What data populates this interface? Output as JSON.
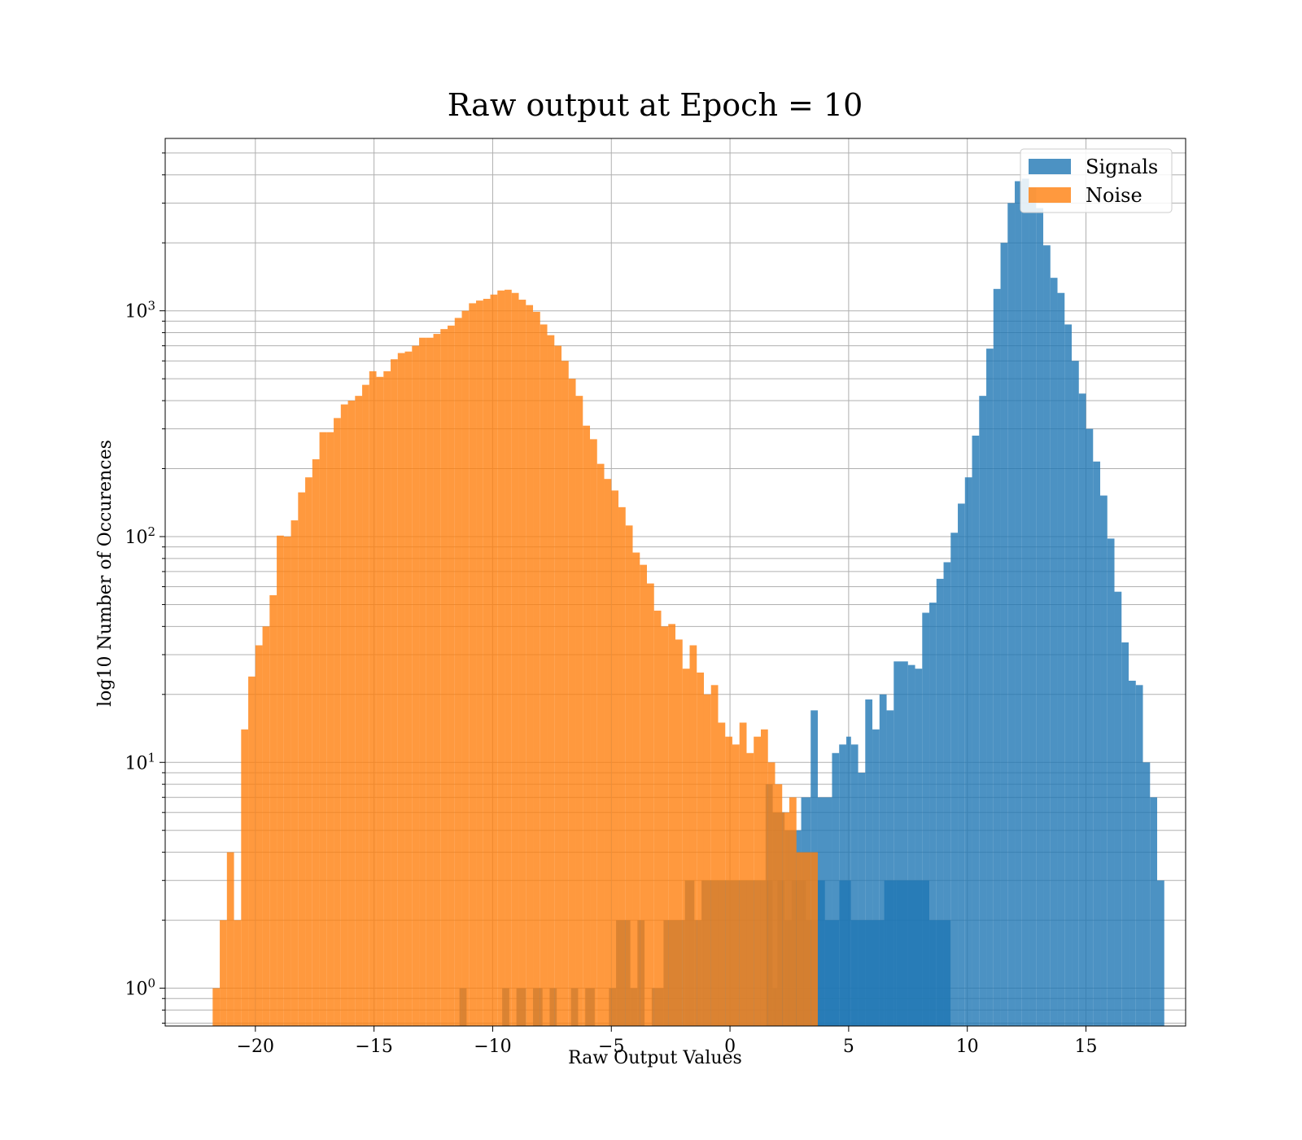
{
  "chart_data": {
    "type": "histogram",
    "title": "Raw output at Epoch = 10",
    "xlabel": "Raw Output Values",
    "ylabel": "log10 Number of Occurences",
    "xlim": [
      -23.8,
      19.2
    ],
    "ylim": [
      0.68,
      5800
    ],
    "yscale": "log",
    "grid": true,
    "legend_position": "top-right",
    "xticks": [
      -20,
      -15,
      -10,
      -5,
      0,
      5,
      10,
      15
    ],
    "xtick_labels": [
      "−20",
      "−15",
      "−10",
      "−5",
      "0",
      "5",
      "10",
      "15"
    ],
    "yticks": [
      {
        "value": 1,
        "label_base": "10",
        "label_exp": "0"
      },
      {
        "value": 10,
        "label_base": "10",
        "label_exp": "1"
      },
      {
        "value": 100,
        "label_base": "10",
        "label_exp": "2"
      },
      {
        "value": 1000,
        "label_base": "10",
        "label_exp": "3"
      }
    ],
    "series": [
      {
        "name": "Signals",
        "color": "#1f77b4",
        "opacity": 0.8,
        "bins": [
          [
            -11.4,
            -11.1,
            1
          ],
          [
            -9.6,
            -9.3,
            1
          ],
          [
            -9.0,
            -8.6,
            1
          ],
          [
            -8.3,
            -7.9,
            1
          ],
          [
            -7.6,
            -7.3,
            1
          ],
          [
            -6.7,
            -6.4,
            1
          ],
          [
            -6.1,
            -5.7,
            1
          ],
          [
            -5.1,
            -4.8,
            1
          ],
          [
            -4.8,
            -4.2,
            2
          ],
          [
            -4.2,
            -3.9,
            1
          ],
          [
            -3.9,
            -3.6,
            2
          ],
          [
            -3.3,
            -2.8,
            1
          ],
          [
            -2.8,
            -2.0,
            2
          ],
          [
            -2.0,
            -1.9,
            2
          ],
          [
            -1.9,
            -1.5,
            3
          ],
          [
            -1.5,
            -1.2,
            2
          ],
          [
            -1.2,
            1.5,
            3
          ],
          [
            1.5,
            1.8,
            3
          ],
          [
            1.8,
            2.0,
            1
          ],
          [
            2.0,
            2.3,
            3
          ],
          [
            2.3,
            2.6,
            2
          ],
          [
            2.6,
            3.2,
            3
          ],
          [
            3.2,
            3.4,
            2
          ],
          [
            3.4,
            3.7,
            2
          ],
          [
            3.7,
            4.0,
            3
          ],
          [
            4.0,
            4.6,
            2
          ],
          [
            4.6,
            5.1,
            3
          ],
          [
            5.1,
            5.4,
            2
          ],
          [
            5.4,
            6.5,
            2
          ],
          [
            6.5,
            7.0,
            3
          ],
          [
            7.0,
            8.4,
            3
          ],
          [
            8.4,
            8.7,
            2
          ],
          [
            8.7,
            9.1,
            2
          ],
          [
            9.1,
            9.3,
            2
          ],
          [
            3.4,
            3.7,
            17
          ],
          [
            1.5,
            1.8,
            8
          ],
          [
            1.8,
            2.3,
            6
          ],
          [
            2.3,
            3.0,
            5
          ],
          [
            3.0,
            3.4,
            7
          ],
          [
            3.7,
            4.3,
            7
          ],
          [
            4.3,
            4.6,
            11
          ],
          [
            4.6,
            4.9,
            12
          ],
          [
            4.9,
            5.1,
            13
          ],
          [
            5.1,
            5.4,
            12
          ],
          [
            5.4,
            5.7,
            9
          ],
          [
            5.7,
            6.0,
            19
          ],
          [
            6.0,
            6.3,
            14
          ],
          [
            6.3,
            6.6,
            20
          ],
          [
            6.6,
            6.9,
            17
          ],
          [
            6.9,
            7.5,
            28
          ],
          [
            7.5,
            7.8,
            27
          ],
          [
            7.8,
            8.1,
            26
          ],
          [
            8.1,
            8.4,
            46
          ],
          [
            8.4,
            8.7,
            51
          ],
          [
            8.7,
            9.0,
            65
          ],
          [
            9.0,
            9.3,
            77
          ],
          [
            9.3,
            9.6,
            104
          ],
          [
            9.6,
            9.9,
            140
          ],
          [
            9.9,
            10.2,
            183
          ],
          [
            10.2,
            10.5,
            280
          ],
          [
            10.5,
            10.8,
            420
          ],
          [
            10.8,
            11.1,
            680
          ],
          [
            11.1,
            11.4,
            1250
          ],
          [
            11.4,
            11.7,
            2000
          ],
          [
            11.7,
            12.0,
            3000
          ],
          [
            12.0,
            12.3,
            3750
          ],
          [
            12.3,
            12.6,
            3850
          ],
          [
            12.6,
            12.9,
            3500
          ],
          [
            12.9,
            13.2,
            2850
          ],
          [
            13.2,
            13.5,
            1950
          ],
          [
            13.5,
            13.8,
            1400
          ],
          [
            13.8,
            14.1,
            1200
          ],
          [
            14.1,
            14.4,
            870
          ],
          [
            14.4,
            14.7,
            600
          ],
          [
            14.7,
            15.0,
            430
          ],
          [
            15.0,
            15.3,
            300
          ],
          [
            15.3,
            15.6,
            215
          ],
          [
            15.6,
            15.9,
            152
          ],
          [
            15.9,
            16.2,
            98
          ],
          [
            16.2,
            16.5,
            57
          ],
          [
            16.5,
            16.8,
            34
          ],
          [
            16.8,
            17.1,
            23
          ],
          [
            17.1,
            17.4,
            22
          ],
          [
            17.4,
            17.7,
            10
          ],
          [
            17.7,
            18.0,
            7
          ],
          [
            18.0,
            18.3,
            3
          ]
        ]
      },
      {
        "name": "Noise",
        "color": "#ff7f0e",
        "opacity": 0.8,
        "bins": [
          [
            -21.8,
            -21.5,
            1
          ],
          [
            -21.5,
            -21.2,
            2
          ],
          [
            -21.2,
            -20.9,
            4
          ],
          [
            -20.9,
            -20.6,
            2
          ],
          [
            -20.6,
            -20.3,
            14
          ],
          [
            -20.3,
            -20.0,
            24
          ],
          [
            -20.0,
            -19.7,
            33
          ],
          [
            -19.7,
            -19.4,
            40
          ],
          [
            -19.4,
            -19.1,
            55
          ],
          [
            -19.1,
            -18.8,
            101
          ],
          [
            -18.8,
            -18.5,
            100
          ],
          [
            -18.5,
            -18.2,
            118
          ],
          [
            -18.2,
            -17.9,
            157
          ],
          [
            -17.9,
            -17.6,
            183
          ],
          [
            -17.6,
            -17.3,
            220
          ],
          [
            -17.3,
            -17.0,
            290
          ],
          [
            -17.0,
            -16.7,
            290
          ],
          [
            -16.7,
            -16.4,
            335
          ],
          [
            -16.4,
            -16.1,
            385
          ],
          [
            -16.1,
            -15.8,
            400
          ],
          [
            -15.8,
            -15.5,
            420
          ],
          [
            -15.5,
            -15.2,
            470
          ],
          [
            -15.2,
            -14.9,
            540
          ],
          [
            -14.9,
            -14.6,
            510
          ],
          [
            -14.6,
            -14.3,
            540
          ],
          [
            -14.3,
            -14.0,
            610
          ],
          [
            -14.0,
            -13.7,
            650
          ],
          [
            -13.7,
            -13.4,
            660
          ],
          [
            -13.4,
            -13.1,
            700
          ],
          [
            -13.1,
            -12.8,
            760
          ],
          [
            -12.8,
            -12.5,
            760
          ],
          [
            -12.5,
            -12.2,
            790
          ],
          [
            -12.2,
            -11.9,
            830
          ],
          [
            -11.9,
            -11.6,
            860
          ],
          [
            -11.6,
            -11.3,
            930
          ],
          [
            -11.3,
            -11.0,
            1000
          ],
          [
            -11.0,
            -10.7,
            1080
          ],
          [
            -10.7,
            -10.4,
            1110
          ],
          [
            -10.4,
            -10.1,
            1130
          ],
          [
            -10.1,
            -9.8,
            1180
          ],
          [
            -9.8,
            -9.5,
            1230
          ],
          [
            -9.5,
            -9.2,
            1240
          ],
          [
            -9.2,
            -8.9,
            1200
          ],
          [
            -8.9,
            -8.6,
            1120
          ],
          [
            -8.6,
            -8.3,
            1060
          ],
          [
            -8.3,
            -8.0,
            990
          ],
          [
            -8.0,
            -7.7,
            870
          ],
          [
            -7.7,
            -7.4,
            780
          ],
          [
            -7.4,
            -7.1,
            700
          ],
          [
            -7.1,
            -6.8,
            600
          ],
          [
            -6.8,
            -6.5,
            500
          ],
          [
            -6.5,
            -6.2,
            420
          ],
          [
            -6.2,
            -5.9,
            310
          ],
          [
            -5.9,
            -5.6,
            270
          ],
          [
            -5.6,
            -5.3,
            210
          ],
          [
            -5.3,
            -5.0,
            180
          ],
          [
            -5.0,
            -4.7,
            160
          ],
          [
            -4.7,
            -4.4,
            135
          ],
          [
            -4.4,
            -4.1,
            112
          ],
          [
            -4.1,
            -3.8,
            85
          ],
          [
            -3.8,
            -3.5,
            75
          ],
          [
            -3.5,
            -3.2,
            62
          ],
          [
            -3.2,
            -2.9,
            47
          ],
          [
            -2.9,
            -2.6,
            40
          ],
          [
            -2.6,
            -2.3,
            41
          ],
          [
            -2.3,
            -2.0,
            35
          ],
          [
            -2.0,
            -1.7,
            26
          ],
          [
            -1.7,
            -1.4,
            33
          ],
          [
            -1.4,
            -1.1,
            25
          ],
          [
            -1.1,
            -0.8,
            20
          ],
          [
            -0.8,
            -0.5,
            22
          ],
          [
            -0.5,
            -0.2,
            15
          ],
          [
            -0.2,
            0.1,
            13
          ],
          [
            0.1,
            0.4,
            12
          ],
          [
            0.4,
            0.7,
            15
          ],
          [
            0.7,
            1.0,
            11
          ],
          [
            1.0,
            1.3,
            13
          ],
          [
            1.3,
            1.6,
            14
          ],
          [
            1.6,
            1.9,
            10
          ],
          [
            1.9,
            2.2,
            8
          ],
          [
            2.2,
            2.5,
            6
          ],
          [
            2.5,
            2.8,
            7
          ],
          [
            2.8,
            3.1,
            4
          ],
          [
            3.1,
            3.4,
            4
          ],
          [
            3.4,
            3.7,
            4
          ]
        ]
      }
    ]
  }
}
